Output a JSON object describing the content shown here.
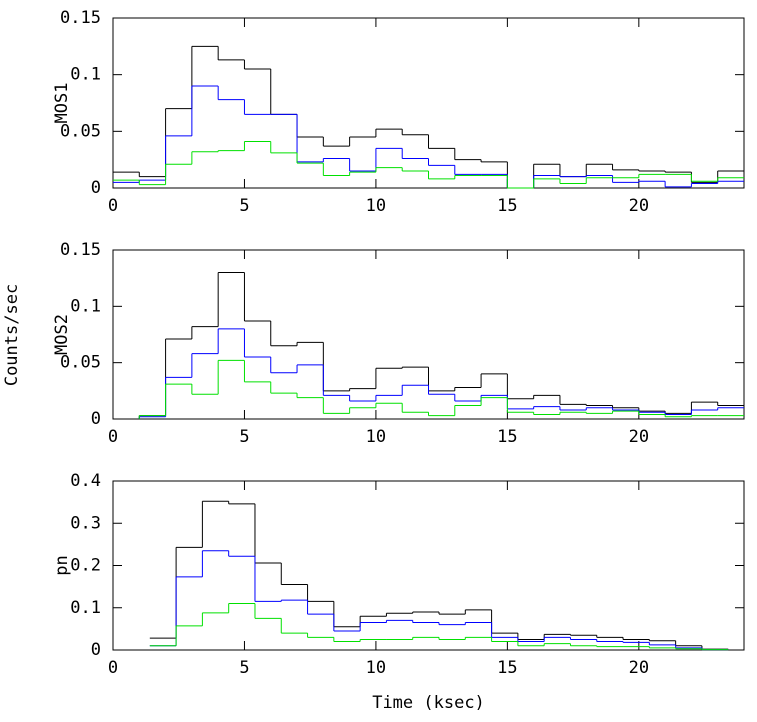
{
  "ylabel": "Counts/sec",
  "chart_data": [
    {
      "type": "histogram",
      "ylabel": "MOS1",
      "bins": [
        0,
        1,
        2,
        3,
        4,
        5,
        6,
        7,
        8,
        9,
        10,
        11,
        12,
        13,
        14,
        15,
        16,
        17,
        18,
        19,
        20,
        21,
        22,
        23,
        24
      ],
      "xlim": [
        0,
        24
      ],
      "xticks": [
        0,
        5,
        10,
        15,
        20
      ],
      "ylim": [
        0,
        0.15
      ],
      "yticks": [
        0,
        0.05,
        0.1,
        0.15
      ],
      "series": [
        {
          "color": "#000000",
          "values": [
            0.014,
            0.01,
            0.07,
            0.125,
            0.113,
            0.105,
            0.065,
            0.045,
            0.037,
            0.045,
            0.052,
            0.047,
            0.035,
            0.025,
            0.023,
            0,
            0.021,
            0.01,
            0.021,
            0.016,
            0.015,
            0.014,
            0.005,
            0.015
          ]
        },
        {
          "color": "#0000ff",
          "values": [
            0.005,
            0.007,
            0.046,
            0.09,
            0.078,
            0.065,
            0.065,
            0.023,
            0.026,
            0.015,
            0.035,
            0.026,
            0.02,
            0.012,
            0.012,
            0,
            0.011,
            0.01,
            0.011,
            0.005,
            0.006,
            0.001,
            0.004,
            0.006
          ]
        },
        {
          "color": "#00e000",
          "values": [
            0.007,
            0.003,
            0.021,
            0.032,
            0.033,
            0.041,
            0.031,
            0.022,
            0.011,
            0.014,
            0.018,
            0.015,
            0.008,
            0.011,
            0.011,
            0,
            0.008,
            0.004,
            0.009,
            0.009,
            0.012,
            0.012,
            0.006,
            0.009
          ]
        }
      ]
    },
    {
      "type": "histogram",
      "ylabel": "MOS2",
      "bins": [
        0,
        1,
        2,
        3,
        4,
        5,
        6,
        7,
        8,
        9,
        10,
        11,
        12,
        13,
        14,
        15,
        16,
        17,
        18,
        19,
        20,
        21,
        22,
        23,
        24
      ],
      "xlim": [
        0,
        24
      ],
      "xticks": [
        0,
        5,
        10,
        15,
        20
      ],
      "ylim": [
        0,
        0.15
      ],
      "yticks": [
        0,
        0.05,
        0.1,
        0.15
      ],
      "series": [
        {
          "color": "#000000",
          "values": [
            null,
            0.003,
            0.071,
            0.082,
            0.13,
            0.087,
            0.065,
            0.068,
            0.025,
            0.027,
            0.045,
            0.046,
            0.025,
            0.028,
            0.04,
            0.018,
            0.021,
            0.013,
            0.012,
            0.01,
            0.007,
            0.005,
            0.015,
            0.012
          ]
        },
        {
          "color": "#0000ff",
          "values": [
            null,
            0.002,
            0.037,
            0.058,
            0.08,
            0.055,
            0.041,
            0.048,
            0.021,
            0.016,
            0.021,
            0.03,
            0.022,
            0.016,
            0.021,
            0.009,
            0.011,
            0.008,
            0.01,
            0.008,
            0.006,
            0.004,
            0.008,
            0.01
          ]
        },
        {
          "color": "#00e000",
          "values": [
            null,
            0.003,
            0.031,
            0.022,
            0.052,
            0.033,
            0.023,
            0.019,
            0.005,
            0.01,
            0.014,
            0.006,
            0.003,
            0.012,
            0.019,
            0.006,
            0.004,
            0.006,
            0.005,
            0.007,
            0.004,
            0.002,
            0.003,
            0.003
          ]
        }
      ]
    },
    {
      "type": "histogram",
      "ylabel": "pn",
      "xlabel": "Time (ksec)",
      "bins": [
        1.4,
        2.4,
        3.4,
        4.4,
        5.4,
        6.4,
        7.4,
        8.4,
        9.4,
        10.4,
        11.4,
        12.4,
        13.4,
        14.4,
        15.4,
        16.4,
        17.4,
        18.4,
        19.4,
        20.4,
        21.4,
        22.4,
        23.4
      ],
      "xlim": [
        0,
        24
      ],
      "xticks": [
        0,
        5,
        10,
        15,
        20
      ],
      "ylim": [
        0,
        0.4
      ],
      "yticks": [
        0,
        0.1,
        0.2,
        0.3,
        0.4
      ],
      "series": [
        {
          "color": "#000000",
          "values": [
            0.028,
            0.243,
            0.352,
            0.346,
            0.206,
            0.155,
            0.115,
            0.055,
            0.08,
            0.087,
            0.09,
            0.085,
            0.095,
            0.04,
            0.025,
            0.037,
            0.035,
            0.03,
            0.025,
            0.022,
            0.01,
            0.002
          ]
        },
        {
          "color": "#0000ff",
          "values": [
            0.01,
            0.173,
            0.235,
            0.222,
            0.115,
            0.118,
            0.085,
            0.045,
            0.065,
            0.07,
            0.065,
            0.06,
            0.065,
            0.03,
            0.02,
            0.03,
            0.025,
            0.02,
            0.018,
            0.012,
            0.005,
            0.001
          ]
        },
        {
          "color": "#00e000",
          "values": [
            0.01,
            0.057,
            0.088,
            0.11,
            0.075,
            0.04,
            0.03,
            0.02,
            0.025,
            0.025,
            0.03,
            0.025,
            0.03,
            0.02,
            0.01,
            0.015,
            0.01,
            0.008,
            0.008,
            0.005,
            0.003,
            0.001
          ]
        }
      ]
    }
  ]
}
